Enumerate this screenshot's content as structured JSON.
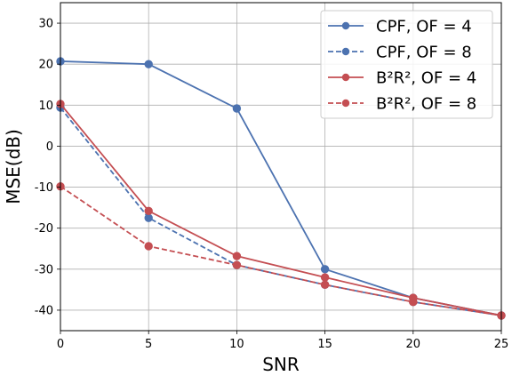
{
  "chart_data": {
    "type": "line",
    "xlabel": "SNR",
    "ylabel": "MSE(dB)",
    "xlim": [
      0,
      25
    ],
    "ylim": [
      -45,
      35
    ],
    "xticks": [
      0,
      5,
      10,
      15,
      20,
      25
    ],
    "yticks": [
      -40,
      -30,
      -20,
      -10,
      0,
      10,
      20,
      30
    ],
    "grid": true,
    "legend_position": "top-right",
    "series": [
      {
        "name": "CPF, OF = 4",
        "color": "#4c72b0",
        "linestyle": "solid",
        "marker": "circle",
        "x": [
          0,
          5,
          10,
          15,
          20,
          25
        ],
        "y": [
          20.7,
          20.0,
          9.2,
          -30.0,
          -37.0,
          -41.3
        ]
      },
      {
        "name": "CPF, OF = 8",
        "color": "#4c72b0",
        "linestyle": "dashed",
        "marker": "circle",
        "x": [
          0,
          5,
          10,
          15,
          20,
          25
        ],
        "y": [
          9.4,
          -17.5,
          -29.0,
          -33.8,
          -38.0,
          -41.3
        ]
      },
      {
        "name": "B²R², OF = 4",
        "color": "#c44e52",
        "linestyle": "solid",
        "marker": "circle",
        "x": [
          0,
          5,
          10,
          15,
          20,
          25
        ],
        "y": [
          10.3,
          -15.8,
          -26.8,
          -32.0,
          -37.0,
          -41.3
        ]
      },
      {
        "name": "B²R², OF = 8",
        "color": "#c44e52",
        "linestyle": "dashed",
        "marker": "circle",
        "x": [
          0,
          5,
          10,
          15,
          20,
          25
        ],
        "y": [
          -9.8,
          -24.4,
          -29.0,
          -33.8,
          -38.0,
          -41.3
        ]
      }
    ]
  }
}
